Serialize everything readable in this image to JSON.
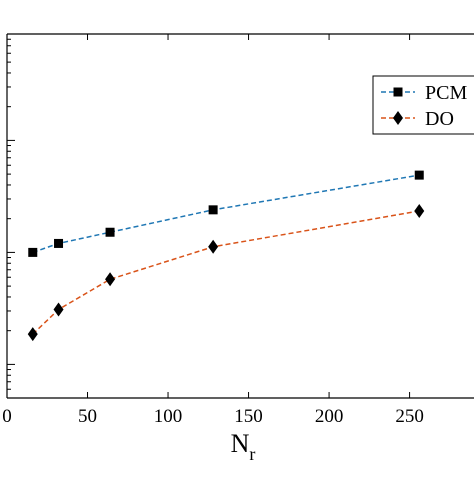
{
  "chart_data": {
    "type": "line",
    "title": "",
    "xlabel": "N",
    "xlabel_subscript": "r",
    "ylabel": "",
    "x_ticks": [
      0,
      50,
      100,
      150,
      200,
      250
    ],
    "x_tick_labels": [
      "0",
      "50",
      "100",
      "150",
      "200",
      "250"
    ],
    "xlim": [
      0,
      290
    ],
    "y_scale": "log",
    "y_decade_ticks": [
      1,
      2,
      3
    ],
    "ylim_log10": [
      0.7,
      3.95
    ],
    "grid": false,
    "legend_position": "top-right",
    "series": [
      {
        "name": "PCM",
        "color": "#1f77b4",
        "marker": "square",
        "line_style": "dashed",
        "x": [
          16,
          32,
          64,
          128,
          256
        ],
        "log10_y": [
          2.0,
          2.08,
          2.18,
          2.38,
          2.69
        ]
      },
      {
        "name": "DO",
        "color": "#d95319",
        "marker": "diamond",
        "line_style": "dashed",
        "x": [
          16,
          32,
          64,
          128,
          256
        ],
        "log10_y": [
          1.27,
          1.49,
          1.76,
          2.05,
          2.37
        ]
      }
    ]
  }
}
